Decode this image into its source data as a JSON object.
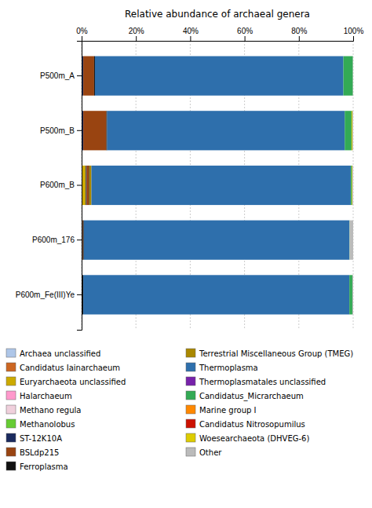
{
  "chart_data": {
    "type": "bar",
    "orientation": "horizontal",
    "stacked": true,
    "xlabel": "Relative abundance of archaeal genera",
    "categories": [
      "P500m_A",
      "P500m_B",
      "P600m_B",
      "P600m_176",
      "P600m_Fe(III)Ye"
    ],
    "series": [
      {
        "name": "Archaea unclassified",
        "color": "#aec6e8",
        "values": [
          0.1,
          0.0,
          0.0,
          0.0,
          0.0
        ]
      },
      {
        "name": "Candidatus Iainarchaeum",
        "color": "#cc6622",
        "values": [
          0.2,
          0.2,
          0.0,
          0.0,
          0.0
        ]
      },
      {
        "name": "Euryarchaeota unclassified",
        "color": "#ccaa00",
        "values": [
          0.0,
          0.0,
          1.5,
          0.0,
          0.0
        ]
      },
      {
        "name": "Halarchaeum",
        "color": "#ff99cc",
        "values": [
          0.0,
          0.0,
          0.0,
          0.0,
          0.0
        ]
      },
      {
        "name": "Methano regula",
        "color": "#f0d0dc",
        "values": [
          0.0,
          0.0,
          0.0,
          0.0,
          0.0
        ]
      },
      {
        "name": "Methanolobus",
        "color": "#66cc33",
        "values": [
          0.0,
          0.0,
          0.0,
          0.0,
          0.0
        ]
      },
      {
        "name": "ST-12K10A",
        "color": "#1a2a5e",
        "values": [
          0.3,
          0.4,
          0.3,
          0.2,
          0.2
        ]
      },
      {
        "name": "BSLdp215",
        "color": "#994411",
        "values": [
          4.0,
          8.5,
          0.8,
          0.3,
          0.1
        ]
      },
      {
        "name": "Ferroplasma",
        "color": "#111111",
        "values": [
          0.3,
          0.3,
          0.2,
          0.3,
          0.3
        ]
      },
      {
        "name": "Terrestrial Miscellaneous Group (TMEG)",
        "color": "#aa8800",
        "values": [
          0.0,
          0.0,
          0.8,
          0.0,
          0.0
        ]
      },
      {
        "name": "Thermoplasma",
        "color": "#2e6fac",
        "values": [
          91.5,
          87.5,
          95.5,
          97.8,
          98.0
        ]
      },
      {
        "name": "Thermoplasmatales unclassified",
        "color": "#7722aa",
        "values": [
          0.0,
          0.0,
          0.0,
          0.0,
          0.0
        ]
      },
      {
        "name": "Candidatus_Micrarchaeum",
        "color": "#33aa55",
        "values": [
          3.5,
          2.5,
          0.4,
          0.1,
          1.1
        ]
      },
      {
        "name": "Marine group I",
        "color": "#ff8800",
        "values": [
          0.0,
          0.0,
          0.0,
          0.0,
          0.0
        ]
      },
      {
        "name": "Candidatus Nitrosopumilus",
        "color": "#cc1100",
        "values": [
          0.0,
          0.0,
          0.0,
          0.0,
          0.0
        ]
      },
      {
        "name": "Woesearchaeota (DHVEG-6)",
        "color": "#ddcc00",
        "values": [
          0.0,
          0.3,
          0.2,
          0.0,
          0.0
        ]
      },
      {
        "name": "Other",
        "color": "#bbbbbb",
        "values": [
          0.1,
          0.3,
          0.3,
          1.3,
          0.3
        ]
      }
    ],
    "xlim": [
      0,
      100
    ],
    "xticks": [
      {
        "value": 0,
        "label": "0%"
      },
      {
        "value": 20,
        "label": "20%"
      },
      {
        "value": 40,
        "label": "40%"
      },
      {
        "value": 60,
        "label": "60%"
      },
      {
        "value": 80,
        "label": "80%"
      },
      {
        "value": 100,
        "label": "100%"
      }
    ],
    "grid": true,
    "legend": "bottom"
  }
}
